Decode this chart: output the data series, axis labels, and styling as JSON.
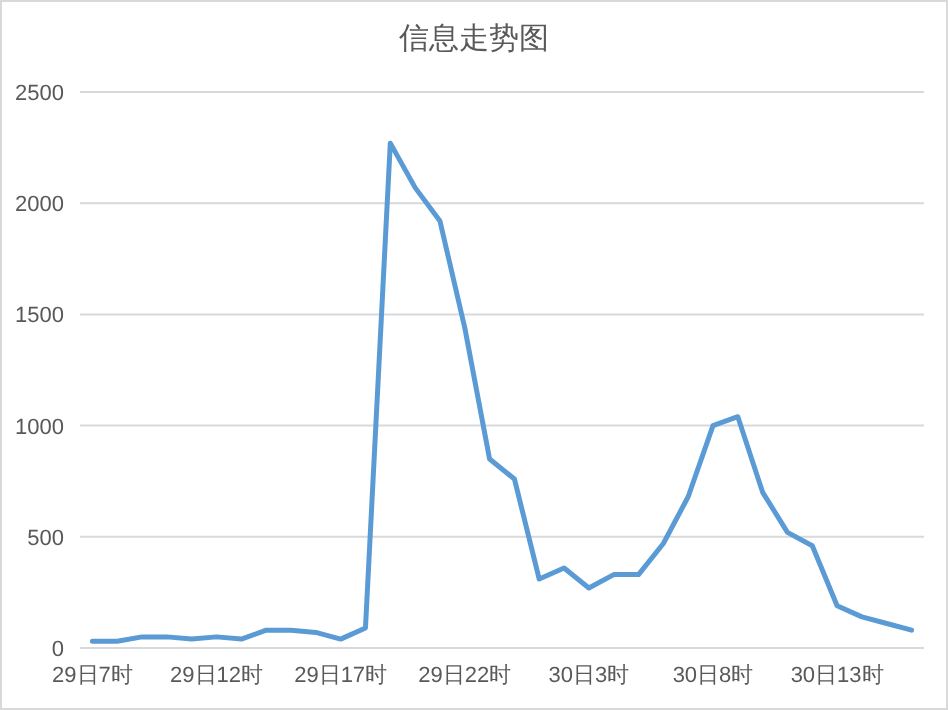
{
  "chart_data": {
    "type": "line",
    "title": "信息走势图",
    "categories": [
      "29日7时",
      null,
      null,
      null,
      null,
      "29日12时",
      null,
      null,
      null,
      null,
      "29日17时",
      null,
      null,
      null,
      null,
      "29日22时",
      null,
      null,
      null,
      null,
      "30日3时",
      null,
      null,
      null,
      null,
      "30日8时",
      null,
      null,
      null,
      null,
      "30日13时",
      null,
      null,
      null
    ],
    "series": [
      {
        "color": "#5b9bd5",
        "values": [
          30,
          30,
          50,
          50,
          40,
          50,
          40,
          80,
          80,
          70,
          40,
          90,
          2270,
          2070,
          1920,
          1440,
          850,
          760,
          310,
          360,
          270,
          330,
          330,
          470,
          680,
          1000,
          1040,
          700,
          520,
          460,
          190,
          140,
          110,
          80
        ]
      }
    ],
    "ylim": [
      0,
      2500
    ],
    "yticks": [
      0,
      500,
      1000,
      1500,
      2000,
      2500
    ],
    "grid": "y",
    "marker": "none",
    "line_style": "solid"
  }
}
